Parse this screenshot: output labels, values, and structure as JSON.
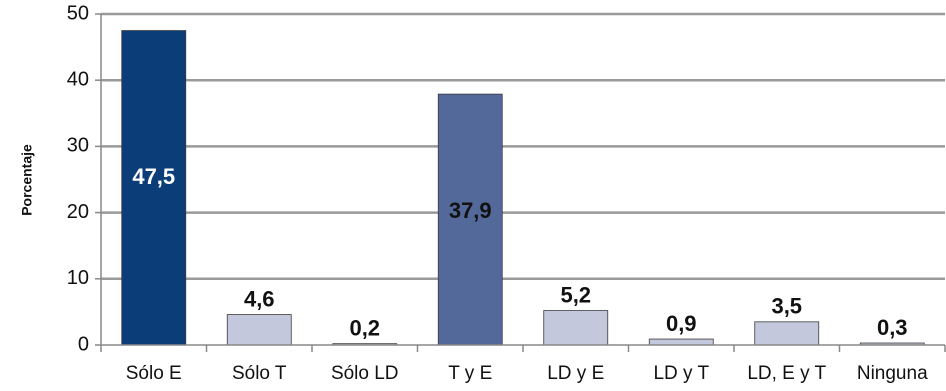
{
  "chart_data": {
    "type": "bar",
    "title": "",
    "xlabel": "",
    "ylabel": "Porcentaje",
    "ylim": [
      0,
      50
    ],
    "yticks": [
      0,
      10,
      20,
      30,
      40,
      50
    ],
    "grid": true,
    "categories": [
      "Sólo E",
      "Sólo T",
      "Sólo LD",
      "T y E",
      "LD y E",
      "LD y T",
      "LD, E y T",
      "Ninguna"
    ],
    "values": [
      47.5,
      4.6,
      0.2,
      37.9,
      5.2,
      0.9,
      3.5,
      0.3
    ],
    "data_labels": [
      "47,5",
      "4,6",
      "0,2",
      "37,9",
      "5,2",
      "0,9",
      "3,5",
      "0,3"
    ],
    "bar_colors": [
      "#0b3d78",
      "#c3c8dc",
      "#c3c8dc",
      "#53699a",
      "#c3c8dc",
      "#c3c8dc",
      "#c3c8dc",
      "#c3c8dc"
    ],
    "label_colors": [
      "#ffffff",
      "#111111",
      "#111111",
      "#111111",
      "#111111",
      "#111111",
      "#111111",
      "#111111"
    ],
    "label_inside": [
      true,
      false,
      false,
      true,
      false,
      false,
      false,
      false
    ]
  }
}
